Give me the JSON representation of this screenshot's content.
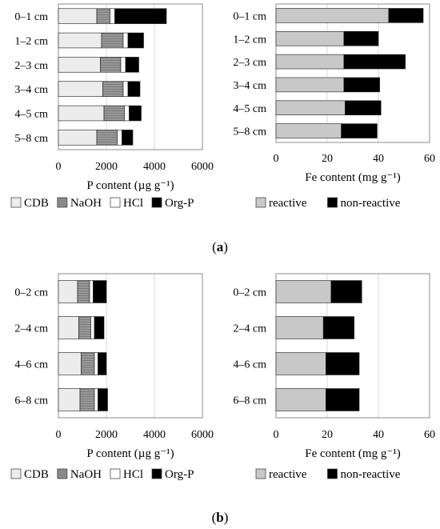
{
  "panels": [
    {
      "label_open": "(",
      "label": "a",
      "label_close": ")"
    },
    {
      "label_open": "(",
      "label": "b",
      "label_close": ")"
    }
  ],
  "colors": {
    "cdb": "#ececec",
    "naoh": "#8a8a8a",
    "hcl": "#ffffff",
    "org_p": "#000000",
    "reactive": "#c8c8c8",
    "non_reactive": "#000000",
    "grid": "#d9d9d9",
    "frame": "#8c8c8c"
  },
  "chart_data": [
    {
      "type": "bar",
      "orientation": "horizontal",
      "stacked": true,
      "panel": "a",
      "categories": [
        "0–1 cm",
        "1–2 cm",
        "2–3 cm",
        "3–4 cm",
        "4–5 cm",
        "5–8 cm"
      ],
      "series": [
        {
          "name": "CDB",
          "values": [
            1600,
            1800,
            1750,
            1850,
            1900,
            1600
          ]
        },
        {
          "name": "NaOH",
          "values": [
            550,
            900,
            850,
            850,
            850,
            850
          ]
        },
        {
          "name": "HCl",
          "values": [
            200,
            200,
            200,
            200,
            200,
            200
          ]
        },
        {
          "name": "Org-P",
          "values": [
            2150,
            650,
            550,
            500,
            500,
            450
          ]
        }
      ],
      "xlabel": "P content (µg g⁻¹)",
      "xlim": [
        0,
        6000
      ],
      "xticks": [
        "0",
        "2000",
        "4000",
        "6000"
      ],
      "grid": true,
      "legend": "bottom"
    },
    {
      "type": "bar",
      "orientation": "horizontal",
      "stacked": true,
      "panel": "a",
      "categories": [
        "0–1 cm",
        "1–2 cm",
        "2–3 cm",
        "3–4 cm",
        "4–5 cm",
        "5–8 cm"
      ],
      "series": [
        {
          "name": "reactive",
          "values": [
            44,
            26.5,
            26.5,
            26.5,
            27,
            25.5
          ]
        },
        {
          "name": "non-reactive",
          "values": [
            13.5,
            13.5,
            24,
            14,
            14,
            14
          ]
        }
      ],
      "xlabel": "Fe content (mg g⁻¹)",
      "xlim": [
        0,
        60
      ],
      "xticks": [
        "0",
        "20",
        "40",
        "60"
      ],
      "grid": true,
      "legend": "bottom"
    },
    {
      "type": "bar",
      "orientation": "horizontal",
      "stacked": true,
      "panel": "b",
      "categories": [
        "0–2 cm",
        "2–4 cm",
        "4–6 cm",
        "6–8 cm"
      ],
      "series": [
        {
          "name": "CDB",
          "values": [
            800,
            850,
            950,
            900
          ]
        },
        {
          "name": "NaOH",
          "values": [
            500,
            500,
            550,
            600
          ]
        },
        {
          "name": "HCl",
          "values": [
            150,
            150,
            150,
            150
          ]
        },
        {
          "name": "Org-P",
          "values": [
            550,
            400,
            350,
            400
          ]
        }
      ],
      "xlabel": "P content (µg g⁻¹)",
      "xlim": [
        0,
        6000
      ],
      "xticks": [
        "0",
        "2000",
        "4000",
        "6000"
      ],
      "grid": true,
      "legend": "bottom"
    },
    {
      "type": "bar",
      "orientation": "horizontal",
      "stacked": true,
      "panel": "b",
      "categories": [
        "0–2 cm",
        "2–4 cm",
        "4–6 cm",
        "6–8 cm"
      ],
      "series": [
        {
          "name": "reactive",
          "values": [
            21.5,
            18.5,
            19.5,
            19.5
          ]
        },
        {
          "name": "non-reactive",
          "values": [
            12,
            12,
            13,
            13
          ]
        }
      ],
      "xlabel": "Fe content (mg g⁻¹)",
      "xlim": [
        0,
        60
      ],
      "xticks": [
        "0",
        "20",
        "40",
        "60"
      ],
      "grid": true,
      "legend": "bottom"
    }
  ]
}
